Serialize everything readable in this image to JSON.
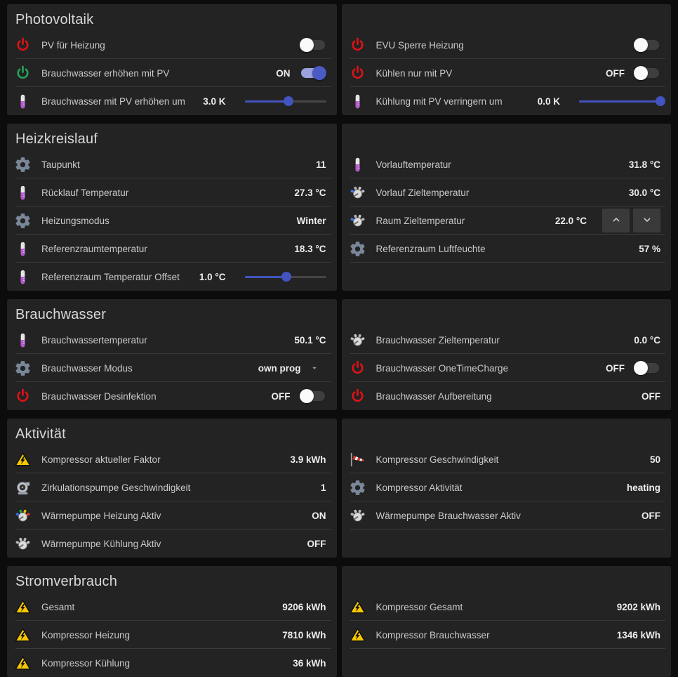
{
  "colors": {
    "page_bg": "#0c0c0c",
    "card_bg": "#232323",
    "divider": "#3a3a3a",
    "title_text": "#d8d8d8",
    "label_text": "#c9c9c9",
    "value_text": "#ededed",
    "power_red": "#e01217",
    "power_green": "#27a35c",
    "accent_blue": "#4a5bc4",
    "toggle_on_track": "#9aa3de",
    "toggle_off_track": "#3e3e3e",
    "slider_blue": "#4353c0",
    "warning_yellow": "#f6c800",
    "gear_gray": "#7a8798",
    "thermometer_purple": "#b457cf",
    "gauge_blue": "#3d7bf5"
  },
  "sections": [
    {
      "title": "Photovoltaik",
      "columns": [
        {
          "rows": [
            {
              "icon": "power-red-icon",
              "label": "PV für Heizung",
              "control": {
                "type": "toggle",
                "state": "off"
              }
            },
            {
              "icon": "power-green-icon",
              "label": "Brauchwasser erhöhen mit PV",
              "state_label": "ON",
              "control": {
                "type": "toggle",
                "state": "on"
              }
            },
            {
              "icon": "thermometer-icon",
              "label": "Brauchwasser mit PV erhöhen um",
              "value": "3.0 K",
              "control": {
                "type": "slider",
                "percent": 54
              }
            }
          ]
        },
        {
          "rows": [
            {
              "icon": "power-red-icon",
              "label": "EVU Sperre Heizung",
              "control": {
                "type": "toggle",
                "state": "off"
              }
            },
            {
              "icon": "power-red-icon",
              "label": "Kühlen nur mit PV",
              "state_label": "OFF",
              "control": {
                "type": "toggle",
                "state": "off"
              }
            },
            {
              "icon": "thermometer-icon",
              "label": "Kühlung mit PV verringern um",
              "value": "0.0 K",
              "control": {
                "type": "slider",
                "percent": 100
              }
            }
          ]
        }
      ]
    },
    {
      "title": "Heizkreislauf",
      "columns": [
        {
          "rows": [
            {
              "icon": "gear-icon",
              "label": "Taupunkt",
              "value": "11"
            },
            {
              "icon": "thermometer-icon",
              "label": "Rücklauf Temperatur",
              "value": "27.3 °C"
            },
            {
              "icon": "gear-icon",
              "label": "Heizungsmodus",
              "value": "Winter"
            },
            {
              "icon": "thermometer-icon",
              "label": "Referenzraumtemperatur",
              "value": "18.3 °C"
            },
            {
              "icon": "thermometer-icon",
              "label": "Referenzraum Temperatur Offset",
              "value": "1.0 °C",
              "control": {
                "type": "slider",
                "percent": 51
              }
            }
          ]
        },
        {
          "rows": [
            {
              "icon": "thermometer-icon",
              "label": "Vorlauftemperatur",
              "value": "31.8 °C"
            },
            {
              "icon": "gauge-target-icon",
              "label": "Vorlauf Zieltemperatur",
              "value": "30.0 °C"
            },
            {
              "icon": "gauge-target-icon",
              "label": "Raum Zieltemperatur",
              "value": "22.0 °C",
              "control": {
                "type": "stepper"
              }
            },
            {
              "icon": "gear-icon",
              "label": "Referenzraum Luftfeuchte",
              "value": "57 %"
            }
          ]
        }
      ]
    },
    {
      "title": "Brauchwasser",
      "columns": [
        {
          "rows": [
            {
              "icon": "thermometer-icon",
              "label": "Brauchwassertemperatur",
              "value": "50.1 °C"
            },
            {
              "icon": "gear-icon",
              "label": "Brauchwasser Modus",
              "value": "own prog",
              "control": {
                "type": "select"
              }
            },
            {
              "icon": "power-red-icon",
              "label": "Brauchwasser Desinfektion",
              "state_label": "OFF",
              "control": {
                "type": "toggle",
                "state": "off"
              }
            }
          ]
        },
        {
          "rows": [
            {
              "icon": "gauge-gray-icon",
              "label": "Brauchwasser Zieltemperatur",
              "value": "0.0 °C"
            },
            {
              "icon": "power-red-icon",
              "label": "Brauchwasser OneTimeCharge",
              "state_label": "OFF",
              "control": {
                "type": "toggle",
                "state": "off"
              }
            },
            {
              "icon": "power-red-icon",
              "label": "Brauchwasser Aufbereitung",
              "value": "OFF"
            }
          ]
        }
      ]
    },
    {
      "title": "Aktivität",
      "columns": [
        {
          "rows": [
            {
              "icon": "hazard-icon",
              "label": "Kompressor aktueller Faktor",
              "value": "3.9 kWh"
            },
            {
              "icon": "pump-icon",
              "label": "Zirkulationspumpe Geschwindigkeit",
              "value": "1"
            },
            {
              "icon": "gauge-color-icon",
              "label": "Wärmepumpe Heizung Aktiv",
              "value": "ON"
            },
            {
              "icon": "gauge-gray-icon",
              "label": "Wärmepumpe Kühlung Aktiv",
              "value": "OFF"
            }
          ]
        },
        {
          "rows": [
            {
              "icon": "windsock-icon",
              "label": "Kompressor Geschwindigkeit",
              "value": "50"
            },
            {
              "icon": "gear-icon",
              "label": "Kompressor Aktivität",
              "value": "heating"
            },
            {
              "icon": "gauge-gray-icon",
              "label": "Wärmepumpe Brauchwasser Aktiv",
              "value": "OFF"
            }
          ]
        }
      ]
    },
    {
      "title": "Stromverbrauch",
      "columns": [
        {
          "rows": [
            {
              "icon": "hazard-icon",
              "label": "Gesamt",
              "value": "9206 kWh"
            },
            {
              "icon": "hazard-icon",
              "label": "Kompressor Heizung",
              "value": "7810 kWh"
            },
            {
              "icon": "hazard-icon",
              "label": "Kompressor Kühlung",
              "value": "36 kWh"
            }
          ]
        },
        {
          "rows": [
            {
              "icon": "hazard-icon",
              "label": "Kompressor Gesamt",
              "value": "9202 kWh"
            },
            {
              "icon": "hazard-icon",
              "label": "Kompressor Brauchwasser",
              "value": "1346 kWh"
            }
          ]
        }
      ]
    }
  ]
}
